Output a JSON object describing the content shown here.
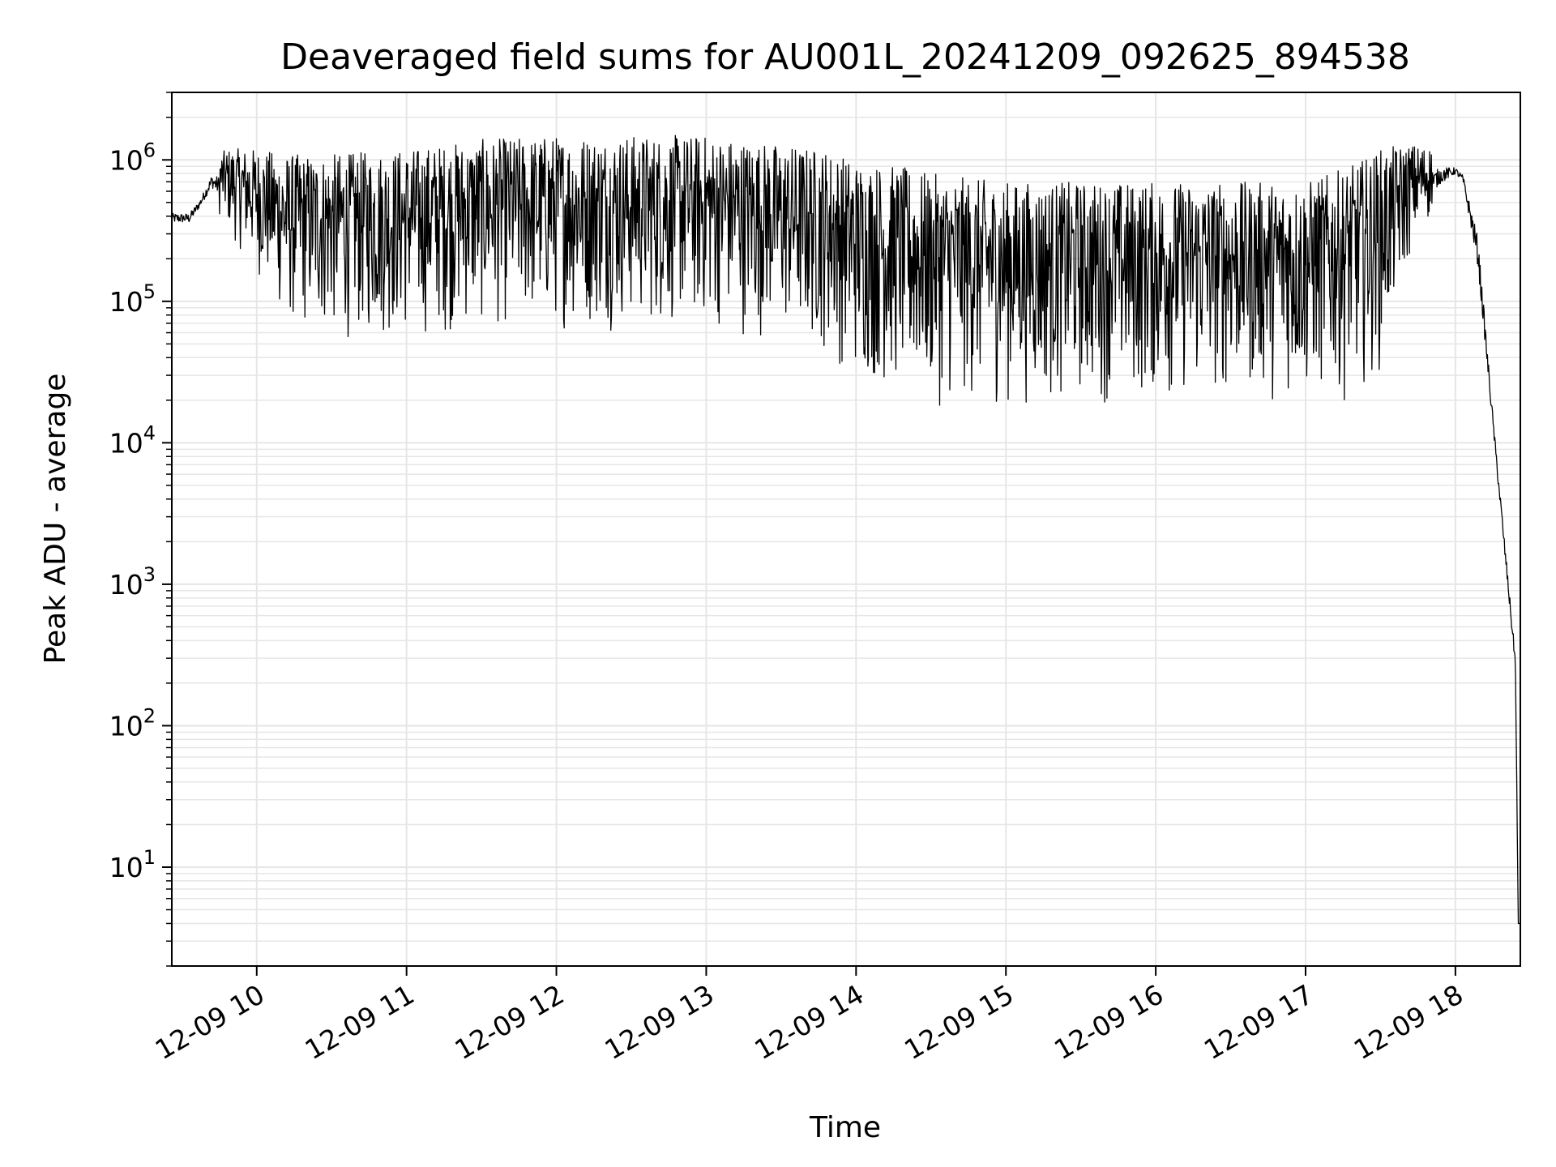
{
  "chart_data": {
    "type": "line",
    "title": "Deaveraged field sums for AU001L_20241209_092625_894538",
    "xlabel": "Time",
    "ylabel": "Peak ADU - average",
    "yscale": "log",
    "grid": true,
    "line_color": "#000000",
    "grid_color": "#e6e6e6",
    "x_range": [
      "12-09 09:26",
      "12-09 18:26"
    ],
    "ylim": [
      2,
      3000000
    ],
    "x_ticks": [
      "12-09 10",
      "12-09 11",
      "12-09 12",
      "12-09 13",
      "12-09 14",
      "12-09 15",
      "12-09 16",
      "12-09 17",
      "12-09 18"
    ],
    "x_tick_hours": [
      10,
      11,
      12,
      13,
      14,
      15,
      16,
      17,
      18
    ],
    "y_ticks": [
      {
        "base": "10",
        "exp": "1",
        "value": 10
      },
      {
        "base": "10",
        "exp": "2",
        "value": 100
      },
      {
        "base": "10",
        "exp": "3",
        "value": 1000
      },
      {
        "base": "10",
        "exp": "4",
        "value": 10000
      },
      {
        "base": "10",
        "exp": "5",
        "value": 100000
      },
      {
        "base": "10",
        "exp": "6",
        "value": 1000000
      }
    ],
    "envelope": {
      "hours": [
        9.43,
        9.55,
        9.62,
        9.7,
        9.8,
        10.0,
        10.2,
        10.5,
        11.0,
        11.5,
        12.0,
        12.5,
        13.0,
        13.5,
        13.8,
        14.0,
        14.3,
        14.5,
        15.0,
        15.5,
        16.0,
        16.5,
        17.0,
        17.3,
        17.5,
        17.7,
        17.9,
        18.0,
        18.05,
        18.15,
        18.25,
        18.35,
        18.4,
        18.42
      ],
      "low": [
        300000,
        300000,
        400000,
        500000,
        300000,
        150000,
        60000,
        50000,
        50000,
        60000,
        60000,
        60000,
        60000,
        50000,
        40000,
        25000,
        20000,
        17000,
        17000,
        18000,
        18000,
        20000,
        18000,
        20000,
        30000,
        200000,
        500000,
        700000,
        600000,
        100000,
        10000,
        700,
        200,
        4
      ],
      "high": [
        500000,
        500000,
        600000,
        1000000,
        1200000,
        1200000,
        1100000,
        1100000,
        1200000,
        1400000,
        1500000,
        1500000,
        1500000,
        1300000,
        1200000,
        1000000,
        900000,
        800000,
        700000,
        700000,
        700000,
        700000,
        700000,
        900000,
        1200000,
        1300000,
        1200000,
        1000000,
        900000,
        500000,
        20000,
        1500,
        400,
        4
      ]
    }
  }
}
